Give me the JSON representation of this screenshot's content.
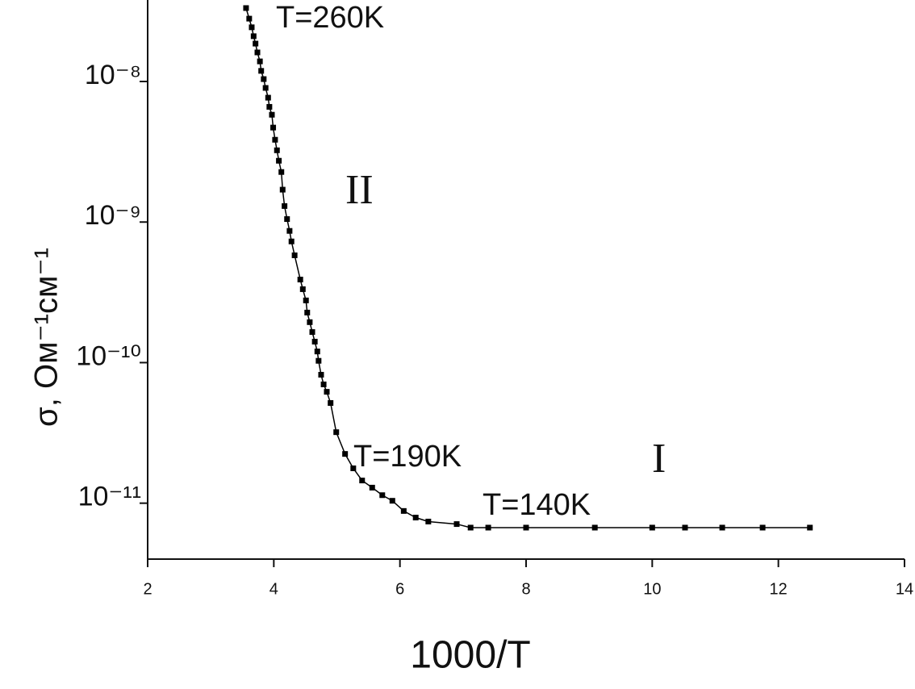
{
  "chart_data": {
    "type": "line",
    "x_label": "1000/T",
    "y_label": "σ, Ом⁻¹см⁻¹",
    "x": [
      3.56,
      3.61,
      3.65,
      3.68,
      3.71,
      3.74,
      3.78,
      3.8,
      3.84,
      3.87,
      3.91,
      3.93,
      3.97,
      3.99,
      4.02,
      4.05,
      4.08,
      4.12,
      4.14,
      4.17,
      4.21,
      4.25,
      4.28,
      4.33,
      4.42,
      4.46,
      4.51,
      4.53,
      4.57,
      4.61,
      4.65,
      4.69,
      4.71,
      4.75,
      4.79,
      4.84,
      4.9,
      4.99,
      5.13,
      5.26,
      5.4,
      5.56,
      5.72,
      5.88,
      6.06,
      6.25,
      6.45,
      6.9,
      7.12,
      7.4,
      8.0,
      9.09,
      10.0,
      10.52,
      11.11,
      11.75,
      12.5
    ],
    "values": [
      3.33e-08,
      2.8e-08,
      2.43e-08,
      2.1e-08,
      1.86e-08,
      1.61e-08,
      1.39e-08,
      1.19e-08,
      1.04e-08,
      9e-09,
      7.67e-09,
      6.6e-09,
      5.8e-09,
      4.7e-09,
      3.85e-09,
      3.24e-09,
      2.73e-09,
      2.27e-09,
      1.7e-09,
      1.3e-09,
      1.05e-09,
      8.65e-10,
      7.28e-10,
      5.8e-10,
      3.9e-10,
      3.33e-10,
      2.77e-10,
      2.27e-10,
      1.94e-10,
      1.65e-10,
      1.41e-10,
      1.2e-10,
      1.03e-10,
      8.2e-11,
      7e-11,
      6.2e-11,
      5.16e-11,
      3.2e-11,
      2.24e-11,
      1.77e-11,
      1.45e-11,
      1.29e-11,
      1.14e-11,
      1.04e-11,
      8.8e-12,
      7.9e-12,
      7.4e-12,
      7.1e-12,
      6.7e-12,
      6.7e-12,
      6.7e-12,
      6.7e-12,
      6.7e-12,
      6.7e-12,
      6.7e-12,
      6.7e-12,
      6.7e-12
    ],
    "color": "#000000",
    "xlim": [
      2,
      14
    ],
    "xticks": [
      2,
      4,
      6,
      8,
      10,
      12,
      14
    ],
    "ylim": [
      4e-12,
      3.8e-08
    ],
    "log_y": true,
    "yticks": [
      {
        "value": 1e-08,
        "label": "10⁻⁸"
      },
      {
        "value": 1e-09,
        "label": "10⁻⁹"
      },
      {
        "value": 1e-10,
        "label": "10⁻¹⁰"
      },
      {
        "value": 1e-11,
        "label": "10⁻¹¹"
      }
    ],
    "annotations": [
      {
        "text": "T=260K"
      },
      {
        "text": "T=190K"
      },
      {
        "text": "T=140K"
      },
      {
        "text": "II"
      },
      {
        "text": "I"
      }
    ]
  }
}
